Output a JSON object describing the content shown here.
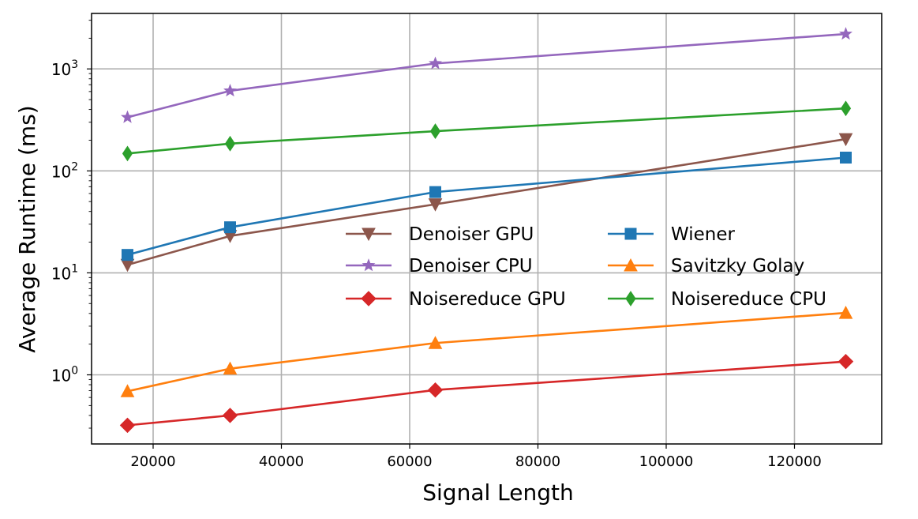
{
  "chart_data": {
    "type": "line",
    "title": "",
    "xlabel": "Signal Length",
    "ylabel": "Average Runtime (ms)",
    "yscale": "log",
    "xlim": [
      10400,
      133600
    ],
    "ylim": [
      0.21,
      3500
    ],
    "grid": true,
    "legend_position": "center-right",
    "x_ticks": [
      20000,
      40000,
      60000,
      80000,
      100000,
      120000
    ],
    "x_tick_labels": [
      "20000",
      "40000",
      "60000",
      "80000",
      "100000",
      "120000"
    ],
    "y_ticks": [
      {
        "base": "10",
        "exp": "0",
        "value": 1
      },
      {
        "base": "10",
        "exp": "1",
        "value": 10
      },
      {
        "base": "10",
        "exp": "2",
        "value": 100
      },
      {
        "base": "10",
        "exp": "3",
        "value": 1000
      }
    ],
    "x": [
      16000,
      32000,
      64000,
      128000
    ],
    "series": [
      {
        "name": "Denoiser GPU",
        "color": "#8c564b",
        "marker": "triangle-down",
        "values": [
          12,
          23,
          47,
          205
        ]
      },
      {
        "name": "Denoiser CPU",
        "color": "#9467bd",
        "marker": "star",
        "values": [
          335,
          610,
          1130,
          2200
        ]
      },
      {
        "name": "Noisereduce GPU",
        "color": "#d62728",
        "marker": "diamond",
        "values": [
          0.32,
          0.4,
          0.71,
          1.35
        ]
      },
      {
        "name": "Wiener",
        "color": "#1f77b4",
        "marker": "square",
        "values": [
          15,
          28,
          62,
          135
        ]
      },
      {
        "name": "Savitzky Golay",
        "color": "#ff7f0e",
        "marker": "triangle-up",
        "values": [
          0.69,
          1.15,
          2.05,
          4.05
        ]
      },
      {
        "name": "Noisereduce CPU",
        "color": "#2ca02c",
        "marker": "thin-diamond",
        "values": [
          148,
          185,
          245,
          410
        ]
      }
    ]
  }
}
